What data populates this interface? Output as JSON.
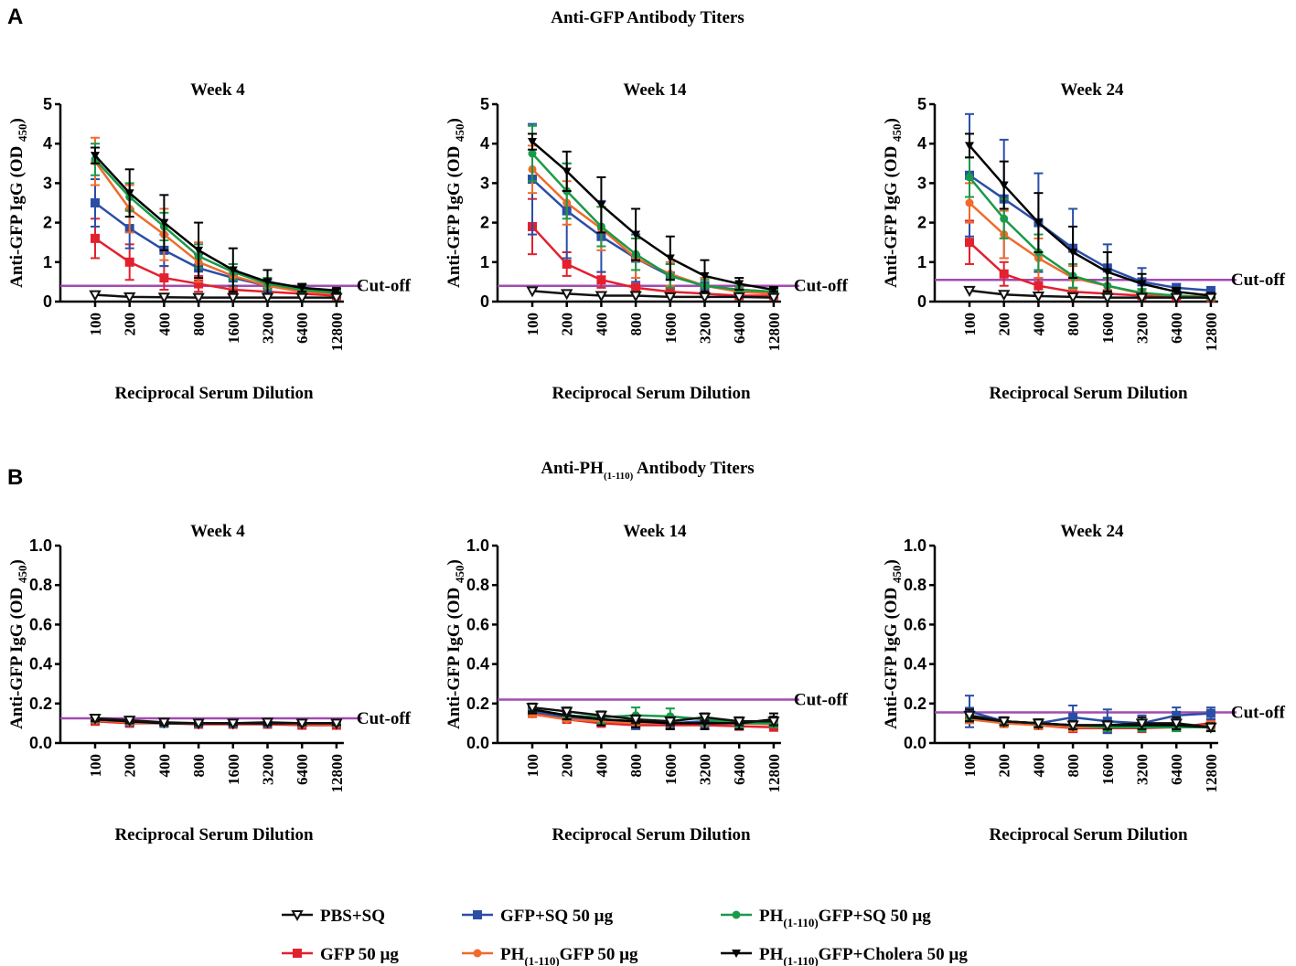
{
  "panels": [
    {
      "letter": "A",
      "title": "Anti-GFP Antibody Titers",
      "title_sub": ""
    },
    {
      "letter": "B",
      "title": "Anti-PH",
      "title_sub": "(1-110)",
      "title_tail": " Antibody Titers"
    }
  ],
  "series": [
    {
      "key": "pbs",
      "label": "PBS+SQ",
      "label_pre": "",
      "label_sub": "",
      "label_post": "",
      "color": "#111111",
      "marker": "tri-down-open"
    },
    {
      "key": "gfp_sq",
      "label": "GFP+SQ 50 µg",
      "label_pre": "",
      "label_sub": "",
      "label_post": "",
      "color": "#2a4ea6",
      "marker": "square"
    },
    {
      "key": "ph_sq",
      "label": "",
      "label_pre": "PH",
      "label_sub": "(1-110)",
      "label_post": "GFP+SQ 50 µg",
      "color": "#1a9a48",
      "marker": "circle"
    },
    {
      "key": "gfp",
      "label": "GFP 50 µg",
      "label_pre": "",
      "label_sub": "",
      "label_post": "",
      "color": "#e3202e",
      "marker": "square"
    },
    {
      "key": "ph",
      "label": "",
      "label_pre": "PH",
      "label_sub": "(1-110)",
      "label_post": "GFP 50 µg",
      "color": "#f06a2c",
      "marker": "circle"
    },
    {
      "key": "ph_ch",
      "label": "",
      "label_pre": "PH",
      "label_sub": "(1-110)",
      "label_post": "GFP+Cholera 50 µg",
      "color": "#000000",
      "marker": "tri-down"
    }
  ],
  "chart_data": [
    {
      "type": "line",
      "panel": "A",
      "title": "Week 4",
      "xlabel": "Reciprocal Serum Dilution",
      "ylabel": "Anti-GFP IgG (OD 450)",
      "ylabel_main": "Anti-GFP IgG (OD",
      "ylabel_sub": "450",
      "ylabel_close": ")",
      "categories": [
        "100",
        "200",
        "400",
        "800",
        "1600",
        "3200",
        "6400",
        "12800"
      ],
      "ylim": [
        0,
        5
      ],
      "yticks": [
        "0",
        "1",
        "2",
        "3",
        "4",
        "5"
      ],
      "cutoff": 0.4,
      "cutoff_label": "Cut-off",
      "series": [
        {
          "key": "gfp",
          "values": [
            1.6,
            1.0,
            0.6,
            0.45,
            0.3,
            0.25,
            0.2,
            0.15
          ],
          "errors": [
            0.5,
            0.45,
            0.3,
            0.2,
            0.1,
            0.08,
            0.05,
            0.05
          ]
        },
        {
          "key": "gfp_sq",
          "values": [
            2.5,
            1.85,
            1.3,
            0.85,
            0.6,
            0.4,
            0.3,
            0.22
          ],
          "errors": [
            0.6,
            0.5,
            0.4,
            0.35,
            0.2,
            0.15,
            0.1,
            0.05
          ]
        },
        {
          "key": "ph",
          "values": [
            3.55,
            2.35,
            1.7,
            1.0,
            0.65,
            0.4,
            0.25,
            0.2
          ],
          "errors": [
            0.6,
            0.6,
            0.65,
            0.5,
            0.3,
            0.2,
            0.1,
            0.05
          ]
        },
        {
          "key": "ph_sq",
          "values": [
            3.6,
            2.65,
            1.9,
            1.15,
            0.75,
            0.45,
            0.3,
            0.22
          ],
          "errors": [
            0.4,
            0.35,
            0.35,
            0.3,
            0.2,
            0.15,
            0.1,
            0.05
          ]
        },
        {
          "key": "ph_ch",
          "values": [
            3.7,
            2.75,
            2.0,
            1.3,
            0.8,
            0.5,
            0.35,
            0.28
          ],
          "errors": [
            0.2,
            0.6,
            0.7,
            0.7,
            0.55,
            0.3,
            0.1,
            0.05
          ]
        },
        {
          "key": "pbs",
          "values": [
            0.17,
            0.12,
            0.11,
            0.1,
            0.1,
            0.1,
            0.1,
            0.1
          ],
          "errors": [
            0,
            0,
            0,
            0,
            0,
            0,
            0,
            0
          ]
        }
      ]
    },
    {
      "type": "line",
      "panel": "A",
      "title": "Week 14",
      "xlabel": "Reciprocal Serum Dilution",
      "ylabel": "Anti-GFP IgG (OD 450)",
      "ylabel_main": "Anti-GFP IgG (OD",
      "ylabel_sub": "450",
      "ylabel_close": ")",
      "categories": [
        "100",
        "200",
        "400",
        "800",
        "1600",
        "3200",
        "6400",
        "12800"
      ],
      "ylim": [
        0,
        5
      ],
      "yticks": [
        "0",
        "1",
        "2",
        "3",
        "4",
        "5"
      ],
      "cutoff": 0.4,
      "cutoff_label": "Cut-off",
      "series": [
        {
          "key": "gfp",
          "values": [
            1.9,
            0.95,
            0.55,
            0.35,
            0.25,
            0.2,
            0.15,
            0.15
          ],
          "errors": [
            0.7,
            0.3,
            0.2,
            0.1,
            0.08,
            0.05,
            0.05,
            0.05
          ]
        },
        {
          "key": "gfp_sq",
          "values": [
            3.1,
            2.3,
            1.65,
            1.1,
            0.65,
            0.4,
            0.3,
            0.25
          ],
          "errors": [
            1.4,
            1.2,
            0.9,
            0.6,
            0.3,
            0.2,
            0.1,
            0.05
          ]
        },
        {
          "key": "ph",
          "values": [
            3.35,
            2.5,
            1.85,
            1.1,
            0.7,
            0.4,
            0.25,
            0.2
          ],
          "errors": [
            0.6,
            0.55,
            0.55,
            0.5,
            0.3,
            0.2,
            0.1,
            0.05
          ]
        },
        {
          "key": "ph_sq",
          "values": [
            3.75,
            2.8,
            1.9,
            1.2,
            0.65,
            0.4,
            0.3,
            0.25
          ],
          "errors": [
            0.7,
            0.7,
            0.5,
            0.4,
            0.3,
            0.15,
            0.1,
            0.05
          ]
        },
        {
          "key": "ph_ch",
          "values": [
            4.05,
            3.3,
            2.45,
            1.7,
            1.1,
            0.65,
            0.45,
            0.3
          ],
          "errors": [
            0.2,
            0.5,
            0.7,
            0.65,
            0.55,
            0.4,
            0.15,
            0.05
          ]
        },
        {
          "key": "pbs",
          "values": [
            0.27,
            0.2,
            0.15,
            0.15,
            0.12,
            0.12,
            0.12,
            0.1
          ],
          "errors": [
            0,
            0,
            0,
            0,
            0,
            0,
            0,
            0
          ]
        }
      ]
    },
    {
      "type": "line",
      "panel": "A",
      "title": "Week 24",
      "xlabel": "Reciprocal Serum Dilution",
      "ylabel": "Anti-GFP IgG (OD 450)",
      "ylabel_main": "Anti-GFP IgG (OD",
      "ylabel_sub": "450",
      "ylabel_close": ")",
      "categories": [
        "100",
        "200",
        "400",
        "800",
        "1600",
        "3200",
        "6400",
        "12800"
      ],
      "ylim": [
        0,
        5
      ],
      "yticks": [
        "0",
        "1",
        "2",
        "3",
        "4",
        "5"
      ],
      "cutoff": 0.55,
      "cutoff_label": "Cut-off",
      "series": [
        {
          "key": "gfp",
          "values": [
            1.5,
            0.7,
            0.4,
            0.25,
            0.2,
            0.15,
            0.12,
            0.1
          ],
          "errors": [
            0.55,
            0.3,
            0.2,
            0.1,
            0.05,
            0.05,
            0.05,
            0.05
          ]
        },
        {
          "key": "gfp_sq",
          "values": [
            3.2,
            2.6,
            2.0,
            1.35,
            0.85,
            0.5,
            0.35,
            0.28
          ],
          "errors": [
            1.55,
            1.5,
            1.25,
            1.0,
            0.6,
            0.35,
            0.1,
            0.05
          ]
        },
        {
          "key": "ph",
          "values": [
            2.5,
            1.7,
            1.1,
            0.6,
            0.4,
            0.2,
            0.15,
            0.12
          ],
          "errors": [
            0.5,
            0.6,
            0.5,
            0.3,
            0.2,
            0.1,
            0.05,
            0.05
          ]
        },
        {
          "key": "ph_sq",
          "values": [
            3.15,
            2.1,
            1.25,
            0.65,
            0.4,
            0.22,
            0.15,
            0.1
          ],
          "errors": [
            0.5,
            0.5,
            0.45,
            0.3,
            0.2,
            0.1,
            0.05,
            0.05
          ]
        },
        {
          "key": "ph_ch",
          "values": [
            3.95,
            2.95,
            2.0,
            1.25,
            0.75,
            0.45,
            0.25,
            0.15
          ],
          "errors": [
            0.3,
            0.6,
            0.75,
            0.65,
            0.5,
            0.25,
            0.1,
            0.05
          ]
        },
        {
          "key": "pbs",
          "values": [
            0.28,
            0.18,
            0.14,
            0.12,
            0.1,
            0.1,
            0.1,
            0.1
          ],
          "errors": [
            0,
            0,
            0,
            0,
            0,
            0,
            0,
            0
          ]
        }
      ]
    },
    {
      "type": "line",
      "panel": "B",
      "title": "Week 4",
      "xlabel": "Reciprocal Serum Dilution",
      "ylabel": "Anti-GFP IgG (OD 450)",
      "ylabel_main": "Anti-GFP IgG (OD",
      "ylabel_sub": "450",
      "ylabel_close": ")",
      "categories": [
        "100",
        "200",
        "400",
        "800",
        "1600",
        "3200",
        "6400",
        "12800"
      ],
      "ylim": [
        0,
        1.0
      ],
      "yticks": [
        "0.0",
        "0.2",
        "0.4",
        "0.6",
        "0.8",
        "1.0"
      ],
      "cutoff": 0.125,
      "cutoff_label": "Cut-off",
      "series": [
        {
          "key": "gfp",
          "values": [
            0.11,
            0.1,
            0.1,
            0.095,
            0.095,
            0.095,
            0.09,
            0.09
          ],
          "errors": [
            0.01,
            0.01,
            0.01,
            0.01,
            0.01,
            0.01,
            0.01,
            0.01
          ]
        },
        {
          "key": "gfp_sq",
          "values": [
            0.12,
            0.105,
            0.1,
            0.1,
            0.1,
            0.1,
            0.1,
            0.1
          ],
          "errors": [
            0.01,
            0.01,
            0.01,
            0.01,
            0.01,
            0.01,
            0.01,
            0.01
          ]
        },
        {
          "key": "ph",
          "values": [
            0.115,
            0.105,
            0.1,
            0.1,
            0.1,
            0.1,
            0.095,
            0.095
          ],
          "errors": [
            0.01,
            0.01,
            0.01,
            0.01,
            0.01,
            0.01,
            0.01,
            0.01
          ]
        },
        {
          "key": "ph_sq",
          "values": [
            0.12,
            0.11,
            0.1,
            0.1,
            0.1,
            0.1,
            0.1,
            0.1
          ],
          "errors": [
            0.01,
            0.01,
            0.01,
            0.01,
            0.01,
            0.01,
            0.01,
            0.01
          ]
        },
        {
          "key": "ph_ch",
          "values": [
            0.12,
            0.11,
            0.1,
            0.1,
            0.1,
            0.1,
            0.1,
            0.1
          ],
          "errors": [
            0.01,
            0.01,
            0.01,
            0.01,
            0.01,
            0.01,
            0.01,
            0.01
          ]
        },
        {
          "key": "pbs",
          "values": [
            0.125,
            0.115,
            0.105,
            0.1,
            0.1,
            0.105,
            0.1,
            0.1
          ],
          "errors": [
            0.01,
            0.01,
            0.01,
            0.01,
            0.01,
            0.01,
            0.01,
            0.01
          ]
        }
      ]
    },
    {
      "type": "line",
      "panel": "B",
      "title": "Week 14",
      "xlabel": "Reciprocal Serum Dilution",
      "ylabel": "Anti-GFP IgG (OD 450)",
      "ylabel_main": "Anti-GFP IgG (OD",
      "ylabel_sub": "450",
      "ylabel_close": ")",
      "categories": [
        "100",
        "200",
        "400",
        "800",
        "1600",
        "3200",
        "6400",
        "12800"
      ],
      "ylim": [
        0,
        1.0
      ],
      "yticks": [
        "0.0",
        "0.2",
        "0.4",
        "0.6",
        "0.8",
        "1.0"
      ],
      "cutoff": 0.22,
      "cutoff_label": "Cut-off",
      "series": [
        {
          "key": "gfp",
          "values": [
            0.15,
            0.12,
            0.1,
            0.09,
            0.09,
            0.09,
            0.085,
            0.08
          ],
          "errors": [
            0.01,
            0.01,
            0.01,
            0.01,
            0.01,
            0.01,
            0.01,
            0.01
          ]
        },
        {
          "key": "gfp_sq",
          "values": [
            0.16,
            0.13,
            0.11,
            0.1,
            0.1,
            0.11,
            0.1,
            0.1
          ],
          "errors": [
            0.02,
            0.02,
            0.02,
            0.03,
            0.03,
            0.03,
            0.02,
            0.02
          ]
        },
        {
          "key": "ph",
          "values": [
            0.145,
            0.12,
            0.11,
            0.1,
            0.1,
            0.1,
            0.1,
            0.095
          ],
          "errors": [
            0.01,
            0.01,
            0.01,
            0.01,
            0.01,
            0.01,
            0.01,
            0.01
          ]
        },
        {
          "key": "ph_sq",
          "values": [
            0.17,
            0.14,
            0.13,
            0.14,
            0.135,
            0.12,
            0.1,
            0.1
          ],
          "errors": [
            0.02,
            0.02,
            0.03,
            0.04,
            0.04,
            0.03,
            0.02,
            0.02
          ]
        },
        {
          "key": "ph_ch",
          "values": [
            0.17,
            0.14,
            0.12,
            0.11,
            0.1,
            0.1,
            0.1,
            0.12
          ],
          "errors": [
            0.02,
            0.02,
            0.03,
            0.03,
            0.03,
            0.03,
            0.03,
            0.03
          ]
        },
        {
          "key": "pbs",
          "values": [
            0.18,
            0.16,
            0.14,
            0.12,
            0.11,
            0.13,
            0.11,
            0.11
          ],
          "errors": [
            0.02,
            0.02,
            0.02,
            0.02,
            0.02,
            0.02,
            0.02,
            0.02
          ]
        }
      ]
    },
    {
      "type": "line",
      "panel": "B",
      "title": "Week 24",
      "xlabel": "Reciprocal Serum Dilution",
      "ylabel": "Anti-GFP IgG (OD 450)",
      "ylabel_main": "Anti-GFP IgG (OD",
      "ylabel_sub": "450",
      "ylabel_close": ")",
      "categories": [
        "100",
        "200",
        "400",
        "800",
        "1600",
        "3200",
        "6400",
        "12800"
      ],
      "ylim": [
        0,
        1.0
      ],
      "yticks": [
        "0.0",
        "0.2",
        "0.4",
        "0.6",
        "0.8",
        "1.0"
      ],
      "cutoff": 0.155,
      "cutoff_label": "Cut-off",
      "series": [
        {
          "key": "gfp",
          "values": [
            0.13,
            0.11,
            0.09,
            0.075,
            0.075,
            0.075,
            0.08,
            0.1
          ],
          "errors": [
            0.02,
            0.02,
            0.02,
            0.02,
            0.02,
            0.02,
            0.02,
            0.02
          ]
        },
        {
          "key": "gfp_sq",
          "values": [
            0.16,
            0.11,
            0.1,
            0.13,
            0.11,
            0.1,
            0.14,
            0.15
          ],
          "errors": [
            0.08,
            0.02,
            0.02,
            0.06,
            0.06,
            0.04,
            0.04,
            0.03
          ]
        },
        {
          "key": "ph",
          "values": [
            0.12,
            0.1,
            0.09,
            0.08,
            0.08,
            0.08,
            0.08,
            0.09
          ],
          "errors": [
            0.02,
            0.02,
            0.02,
            0.02,
            0.02,
            0.02,
            0.02,
            0.02
          ]
        },
        {
          "key": "ph_sq",
          "values": [
            0.13,
            0.11,
            0.1,
            0.09,
            0.08,
            0.08,
            0.08,
            0.08
          ],
          "errors": [
            0.02,
            0.02,
            0.02,
            0.02,
            0.02,
            0.02,
            0.02,
            0.02
          ]
        },
        {
          "key": "ph_ch",
          "values": [
            0.13,
            0.11,
            0.1,
            0.09,
            0.09,
            0.09,
            0.09,
            0.08
          ],
          "errors": [
            0.02,
            0.02,
            0.02,
            0.02,
            0.02,
            0.02,
            0.02,
            0.02
          ]
        },
        {
          "key": "pbs",
          "values": [
            0.14,
            0.11,
            0.1,
            0.09,
            0.09,
            0.1,
            0.1,
            0.08
          ],
          "errors": [
            0.03,
            0.02,
            0.02,
            0.02,
            0.02,
            0.03,
            0.03,
            0.02
          ]
        }
      ]
    }
  ]
}
